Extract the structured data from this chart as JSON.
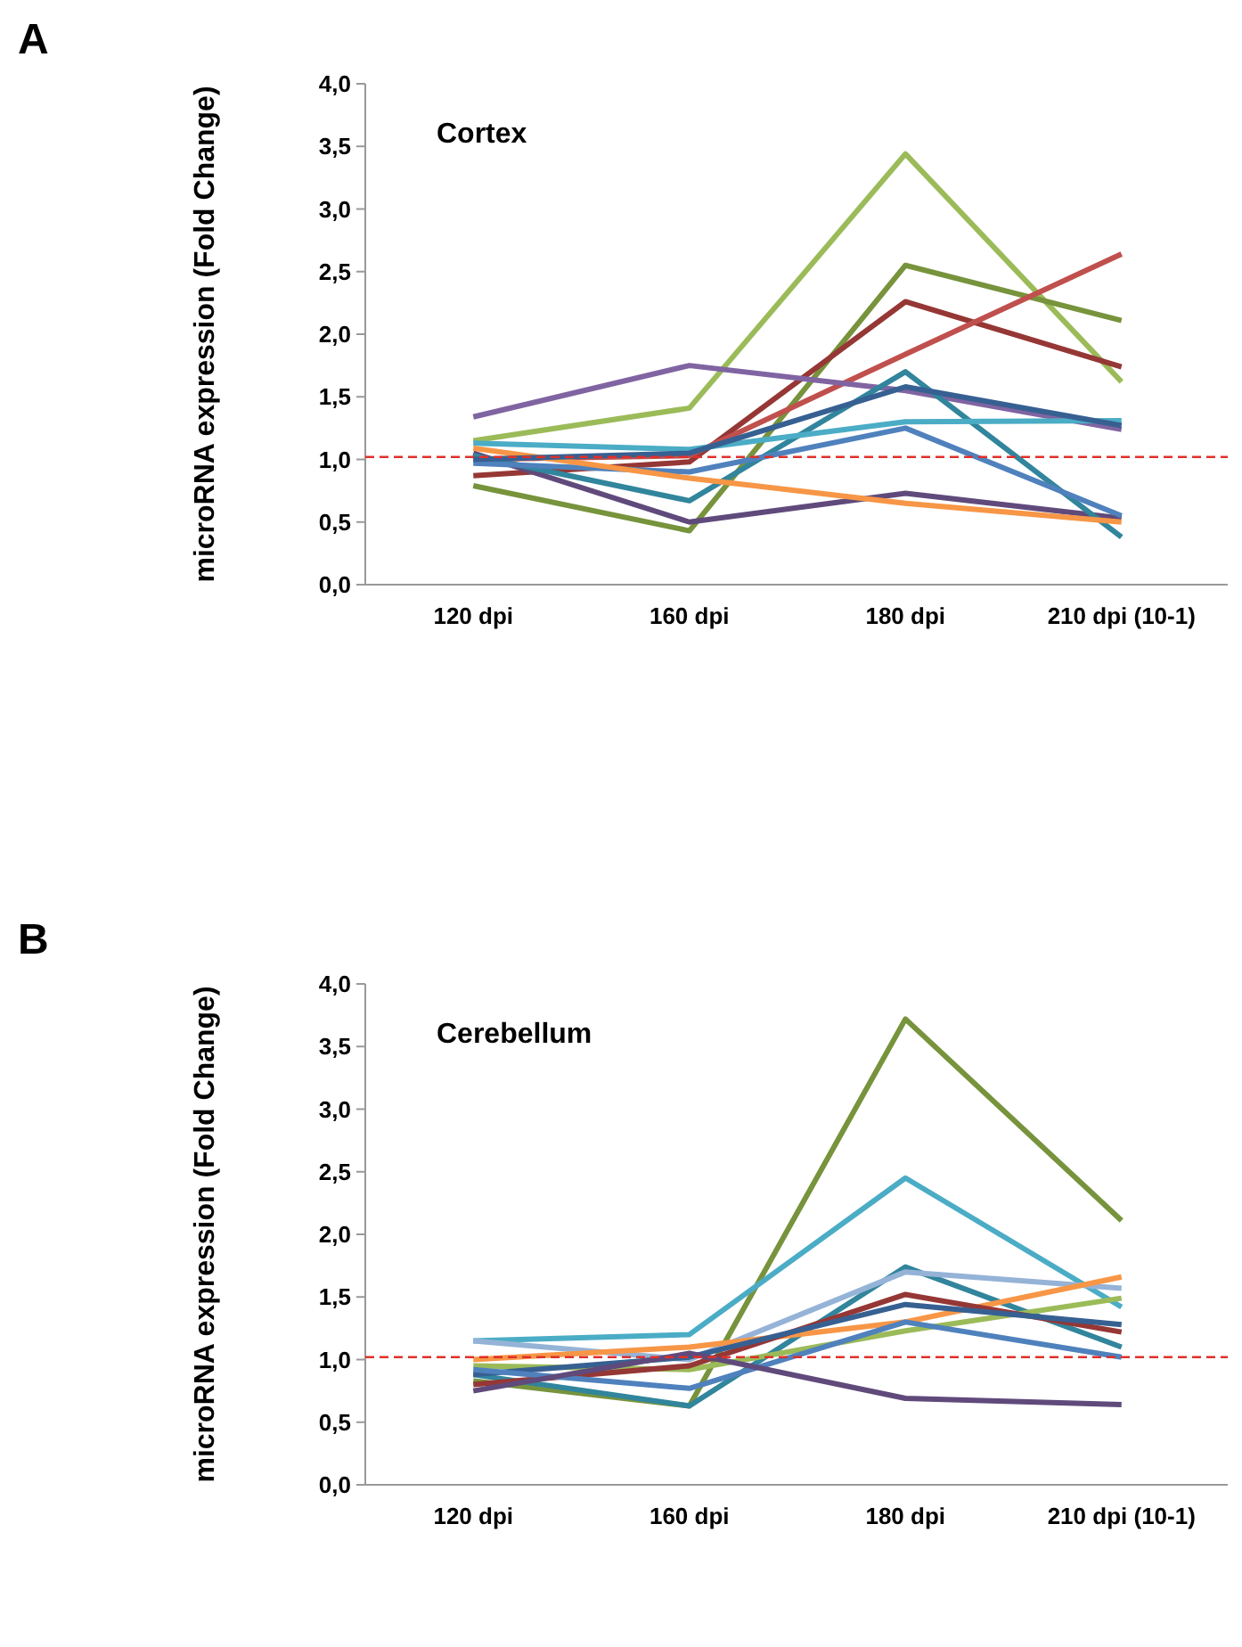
{
  "chart_data": [
    {
      "type": "line",
      "title": "Cortex",
      "annotations": [
        "A"
      ],
      "ylabel": "microRNA expression (Fold Change)",
      "categories": [
        "120 dpi",
        "160 dpi",
        "180 dpi",
        "210 dpi (10-1)"
      ],
      "ylim": [
        0,
        4
      ],
      "yticks": [
        {
          "value": 0,
          "label": "0,0"
        },
        {
          "value": 0.5,
          "label": "0,5"
        },
        {
          "value": 1,
          "label": "1,0"
        },
        {
          "value": 1.5,
          "label": "1,5"
        },
        {
          "value": 2,
          "label": "2,0"
        },
        {
          "value": 2.5,
          "label": "2,5"
        },
        {
          "value": 3,
          "label": "3,0"
        },
        {
          "value": 3.5,
          "label": "3,5"
        },
        {
          "value": 4,
          "label": "4,0"
        }
      ],
      "grid": false,
      "ref_lines": [
        {
          "axis": "y",
          "value": 1.02,
          "color": "#e0302a",
          "line_style": "dashed"
        }
      ],
      "series": [
        {
          "color": "#9bbb59",
          "values": [
            1.15,
            1.41,
            3.44,
            1.62
          ]
        },
        {
          "color": "#77933c",
          "values": [
            0.79,
            0.43,
            2.55,
            2.11
          ]
        },
        {
          "color": "#953735",
          "values": [
            0.87,
            0.98,
            2.26,
            1.74
          ]
        },
        {
          "color": "#c0504d",
          "values": [
            1.0,
            1.03,
            1.84,
            2.64
          ]
        },
        {
          "color": "#8064a2",
          "values": [
            1.34,
            1.75,
            1.55,
            1.24
          ]
        },
        {
          "color": "#604a7b",
          "values": [
            1.05,
            0.5,
            0.73,
            0.53
          ]
        },
        {
          "color": "#31859c",
          "values": [
            1.03,
            0.67,
            1.7,
            0.38
          ]
        },
        {
          "color": "#4f81bd",
          "values": [
            0.97,
            0.9,
            1.25,
            0.55
          ]
        },
        {
          "color": "#4bacc6",
          "values": [
            1.13,
            1.08,
            1.3,
            1.31
          ]
        },
        {
          "color": "#f79646",
          "values": [
            1.09,
            0.85,
            0.65,
            0.5
          ]
        },
        {
          "color": "#376092",
          "values": [
            1.0,
            1.05,
            1.58,
            1.27
          ]
        }
      ]
    },
    {
      "type": "line",
      "title": "Cerebellum",
      "annotations": [
        "B"
      ],
      "ylabel": "microRNA expression (Fold Change)",
      "categories": [
        "120 dpi",
        "160 dpi",
        "180 dpi",
        "210 dpi (10-1)"
      ],
      "ylim": [
        0,
        4
      ],
      "yticks": [
        {
          "value": 0,
          "label": "0,0"
        },
        {
          "value": 0.5,
          "label": "0,5"
        },
        {
          "value": 1,
          "label": "1,0"
        },
        {
          "value": 1.5,
          "label": "1,5"
        },
        {
          "value": 2,
          "label": "2,0"
        },
        {
          "value": 2.5,
          "label": "2,5"
        },
        {
          "value": 3,
          "label": "3,0"
        },
        {
          "value": 3.5,
          "label": "3,5"
        },
        {
          "value": 4,
          "label": "4,0"
        }
      ],
      "grid": false,
      "ref_lines": [
        {
          "axis": "y",
          "value": 1.02,
          "color": "#e0302a",
          "line_style": "dashed"
        }
      ],
      "series": [
        {
          "color": "#77933c",
          "values": [
            0.83,
            0.63,
            3.72,
            2.11
          ]
        },
        {
          "color": "#4bacc6",
          "values": [
            1.15,
            1.2,
            2.45,
            1.42
          ]
        },
        {
          "color": "#31859c",
          "values": [
            0.88,
            0.63,
            1.74,
            1.1
          ]
        },
        {
          "color": "#95b3d7",
          "values": [
            1.15,
            1.0,
            1.7,
            1.57
          ]
        },
        {
          "color": "#f79646",
          "values": [
            1.0,
            1.1,
            1.3,
            1.66
          ]
        },
        {
          "color": "#9bbb59",
          "values": [
            0.95,
            0.92,
            1.23,
            1.49
          ]
        },
        {
          "color": "#953735",
          "values": [
            0.8,
            0.95,
            1.52,
            1.22
          ]
        },
        {
          "color": "#376092",
          "values": [
            0.88,
            1.02,
            1.44,
            1.28
          ]
        },
        {
          "color": "#4f81bd",
          "values": [
            0.92,
            0.77,
            1.3,
            1.02
          ]
        },
        {
          "color": "#604a7b",
          "values": [
            0.75,
            1.05,
            0.69,
            0.64
          ]
        }
      ]
    }
  ]
}
